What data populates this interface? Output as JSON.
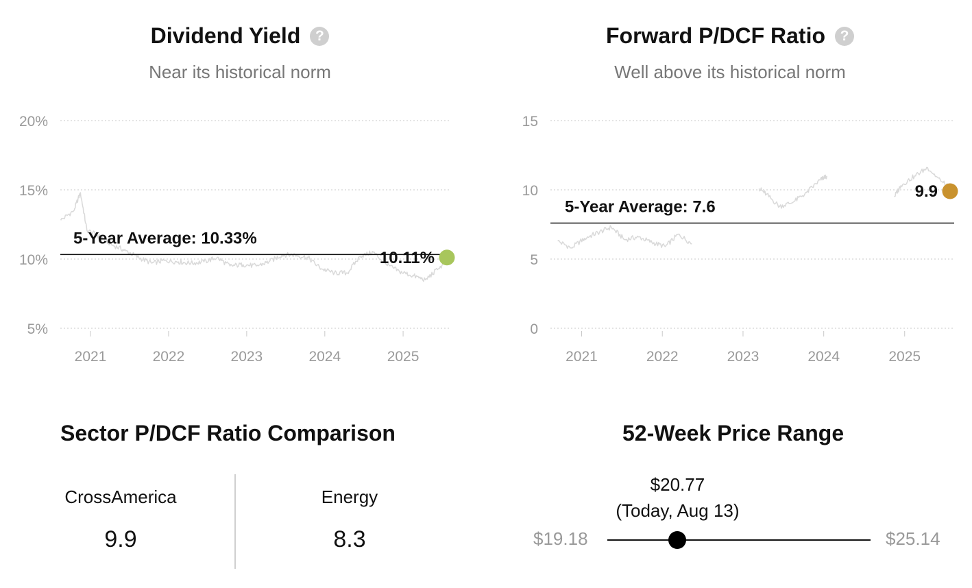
{
  "charts": {
    "yield": {
      "title": "Dividend Yield",
      "subtitle": "Near its historical norm",
      "help_icon": "question-circle-icon",
      "avg_label": "5-Year Average: 10.33%",
      "current_label": "10.11%",
      "y_ticks": [
        "20%",
        "15%",
        "10%",
        "5%"
      ],
      "x_ticks": [
        "2021",
        "2022",
        "2023",
        "2024",
        "2025"
      ],
      "dot_color": "#A8C65C"
    },
    "pdcf": {
      "title": "Forward P/DCF Ratio",
      "subtitle": "Well above its historical norm",
      "help_icon": "question-circle-icon",
      "avg_label": "5-Year Average: 7.6",
      "current_label": "9.9",
      "y_ticks": [
        "15",
        "10",
        "5",
        "0"
      ],
      "x_ticks": [
        "2021",
        "2022",
        "2023",
        "2024",
        "2025"
      ],
      "dot_color": "#C9922E"
    }
  },
  "chart_data": [
    {
      "type": "line",
      "title": "Dividend Yield",
      "unit": "%",
      "ylim": [
        5,
        20
      ],
      "xlim": [
        "2020-08-13",
        "2025-08-13"
      ],
      "average": 10.33,
      "current": 10.11,
      "series": [
        {
          "x": [
            "2020-08",
            "2020-10",
            "2020-11",
            "2020-12",
            "2021-02",
            "2021-04",
            "2021-06",
            "2021-08",
            "2021-10",
            "2021-12",
            "2022-02",
            "2022-04",
            "2022-06",
            "2022-08",
            "2022-10",
            "2022-12",
            "2023-02",
            "2023-04",
            "2023-06",
            "2023-08",
            "2023-10",
            "2023-12",
            "2024-02",
            "2024-04",
            "2024-06",
            "2024-08",
            "2024-10",
            "2024-12",
            "2025-02",
            "2025-04",
            "2025-06",
            "2025-08"
          ],
          "values": [
            12.8,
            13.5,
            14.8,
            12.1,
            11.6,
            11.0,
            10.6,
            10.1,
            9.7,
            9.9,
            9.8,
            9.7,
            9.8,
            10.1,
            9.5,
            9.6,
            9.5,
            9.8,
            10.3,
            10.3,
            10.1,
            9.3,
            9.0,
            9.0,
            10.2,
            10.5,
            9.6,
            9.1,
            8.8,
            8.5,
            9.3,
            10.1
          ]
        }
      ]
    },
    {
      "type": "line",
      "title": "Forward P/DCF Ratio",
      "ylim": [
        0,
        15
      ],
      "xlim": [
        "2020-08-13",
        "2025-08-13"
      ],
      "average": 7.6,
      "current": 9.9,
      "series": [
        {
          "x": [
            "2020-09",
            "2020-11",
            "2021-01",
            "2021-03",
            "2021-05",
            "2021-07",
            "2021-09",
            "2021-11",
            "2022-01",
            "2022-03",
            "2022-05"
          ],
          "values": [
            6.3,
            5.8,
            6.5,
            6.9,
            7.3,
            6.4,
            6.6,
            6.2,
            5.9,
            6.8,
            6.1
          ]
        },
        {
          "x": [
            "2023-03",
            "2023-04",
            "2023-06",
            "2023-08",
            "2023-10",
            "2023-12",
            "2024-01"
          ],
          "values": [
            10.1,
            9.7,
            8.8,
            9.1,
            9.8,
            10.7,
            11.0
          ]
        },
        {
          "x": [
            "2024-11",
            "2024-12",
            "2025-02",
            "2025-04",
            "2025-06",
            "2025-08"
          ],
          "values": [
            9.5,
            10.3,
            11.0,
            11.6,
            10.6,
            9.9
          ]
        }
      ]
    }
  ],
  "sector_comparison": {
    "title": "Sector P/DCF Ratio Comparison",
    "items": [
      {
        "name": "CrossAmerica",
        "value": "9.9"
      },
      {
        "name": "Energy",
        "value": "8.3"
      }
    ]
  },
  "price_range": {
    "title": "52-Week Price Range",
    "low_label": "$19.18",
    "high_label": "$25.14",
    "current_price": "$20.77",
    "current_note": "(Today, Aug 13)",
    "low": 19.18,
    "high": 25.14,
    "current": 20.77
  }
}
